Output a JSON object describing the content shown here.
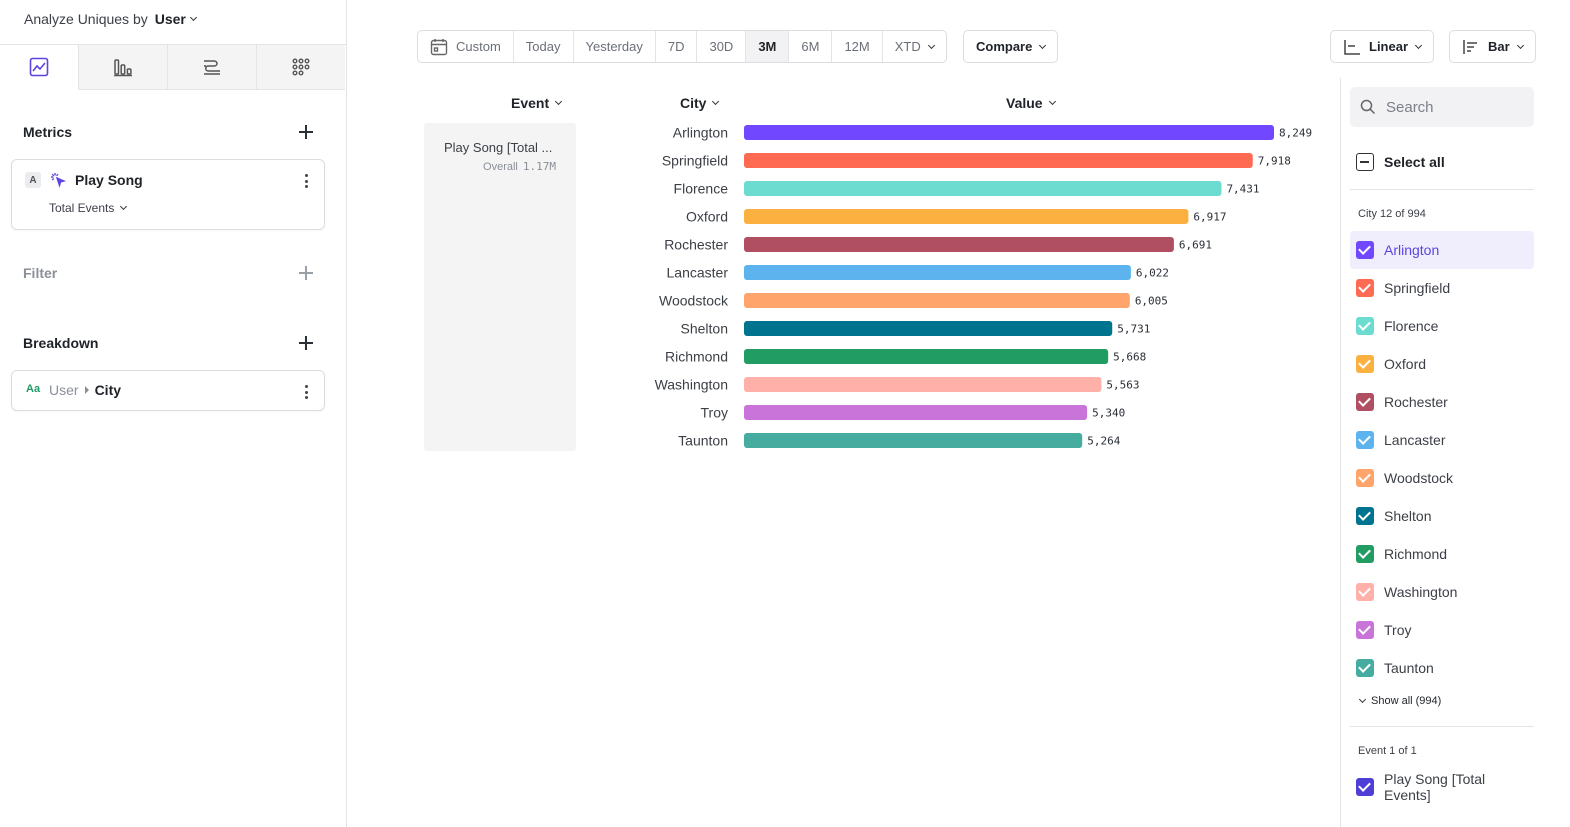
{
  "analyze": {
    "prefix": "Analyze Uniques by",
    "value": "User"
  },
  "left_tabs": [
    {
      "name": "insights-tab",
      "icon": "line-chart-icon",
      "active": true
    },
    {
      "name": "funnels-tab",
      "icon": "funnel-bars-icon",
      "active": false
    },
    {
      "name": "flows-tab",
      "icon": "flows-icon",
      "active": false
    },
    {
      "name": "retention-tab",
      "icon": "grid-dots-icon",
      "active": false
    }
  ],
  "metrics": {
    "title": "Metrics",
    "items": [
      {
        "badge": "A",
        "name": "Play Song",
        "measure": "Total Events"
      }
    ]
  },
  "filter": {
    "title": "Filter"
  },
  "breakdown": {
    "title": "Breakdown",
    "items": [
      {
        "type_badge": "Aa",
        "entity": "User",
        "property": "City"
      }
    ]
  },
  "toolbar": {
    "date_ranges": [
      "Custom",
      "Today",
      "Yesterday",
      "7D",
      "30D",
      "3M",
      "6M",
      "12M",
      "XTD"
    ],
    "active_range": "3M",
    "compare_label": "Compare",
    "scale_label": "Linear",
    "chart_type_label": "Bar"
  },
  "table": {
    "col_event": "Event",
    "col_city": "City",
    "col_value": "Value",
    "event_name": "Play Song [Total ...",
    "overall_label": "Overall",
    "overall_value": "1.17M"
  },
  "chart_data": {
    "type": "bar",
    "orientation": "horizontal",
    "categories": [
      "Arlington",
      "Springfield",
      "Florence",
      "Oxford",
      "Rochester",
      "Lancaster",
      "Woodstock",
      "Shelton",
      "Richmond",
      "Washington",
      "Troy",
      "Taunton"
    ],
    "values": [
      8249,
      7918,
      7431,
      6917,
      6691,
      6022,
      6005,
      5731,
      5668,
      5563,
      5340,
      5264
    ],
    "value_labels": [
      "8,249",
      "7,918",
      "7,431",
      "6,917",
      "6,691",
      "6,022",
      "6,005",
      "5,731",
      "5,668",
      "5,563",
      "5,340",
      "5,264"
    ],
    "colors": [
      "#7147ff",
      "#ff6a52",
      "#6cdbd0",
      "#fbb040",
      "#b04e62",
      "#5db3ee",
      "#ffa46b",
      "#00738f",
      "#219d63",
      "#ffb0a8",
      "#c874d9",
      "#47aca0"
    ],
    "xlim": [
      0,
      8249
    ]
  },
  "legend": {
    "search_placeholder": "Search",
    "select_all": "Select all",
    "city_caption": "City 12 of 994",
    "show_all": "Show all (994)",
    "event_caption": "Event 1 of 1",
    "event_items": [
      {
        "label": "Play Song [Total Events]",
        "color": "#4f3fd6"
      }
    ]
  }
}
